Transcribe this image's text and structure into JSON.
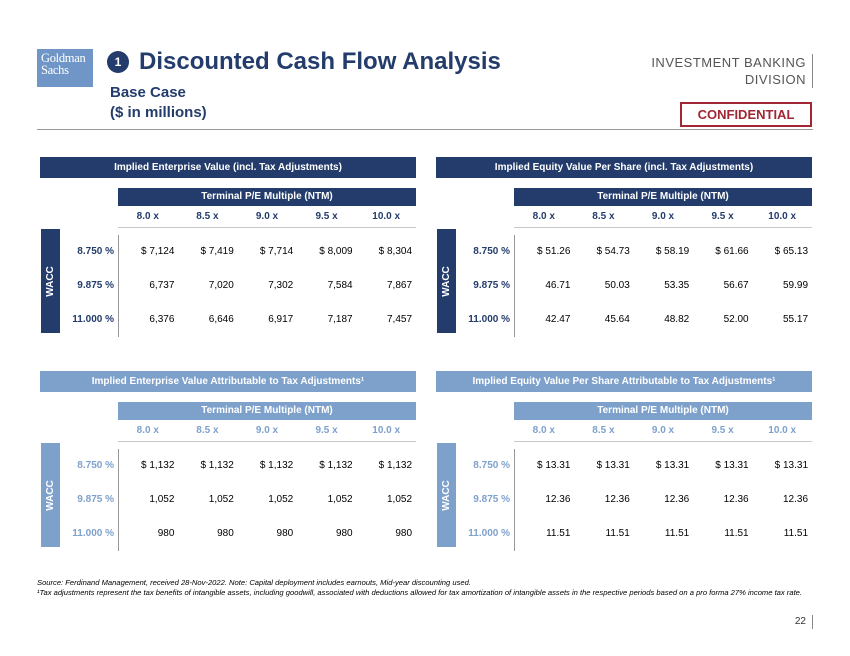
{
  "header": {
    "logo_line1": "Goldman",
    "logo_line2": "Sachs",
    "badge": "1",
    "title": "Discounted Cash Flow Analysis",
    "subtitle_line1": "Base Case",
    "subtitle_line2": "($ in millions)",
    "division_line1": "INVESTMENT BANKING",
    "division_line2": "DIVISION",
    "confidential": "CONFIDENTIAL"
  },
  "panels": [
    {
      "title": "Implied Enterprise Value (incl. Tax Adjustments)",
      "subheader": "Terminal P/E Multiple (NTM)",
      "columns": [
        "8.0 x",
        "8.5 x",
        "9.0 x",
        "9.5 x",
        "10.0 x"
      ],
      "axis_label": "WACC",
      "rows": [
        {
          "label": "8.750 %",
          "values": [
            "$ 7,124",
            "$ 7,419",
            "$ 7,714",
            "$ 8,009",
            "$ 8,304"
          ]
        },
        {
          "label": "9.875 %",
          "values": [
            "6,737",
            "7,020",
            "7,302",
            "7,584",
            "7,867"
          ]
        },
        {
          "label": "11.000 %",
          "values": [
            "6,376",
            "6,646",
            "6,917",
            "7,187",
            "7,457"
          ]
        }
      ]
    },
    {
      "title": "Implied Equity Value Per Share (incl. Tax Adjustments)",
      "subheader": "Terminal P/E Multiple (NTM)",
      "columns": [
        "8.0 x",
        "8.5 x",
        "9.0 x",
        "9.5 x",
        "10.0 x"
      ],
      "axis_label": "WACC",
      "rows": [
        {
          "label": "8.750 %",
          "values": [
            "$ 51.26",
            "$ 54.73",
            "$ 58.19",
            "$ 61.66",
            "$ 65.13"
          ]
        },
        {
          "label": "9.875 %",
          "values": [
            "46.71",
            "50.03",
            "53.35",
            "56.67",
            "59.99"
          ]
        },
        {
          "label": "11.000 %",
          "values": [
            "42.47",
            "45.64",
            "48.82",
            "52.00",
            "55.17"
          ]
        }
      ]
    },
    {
      "title": "Implied Enterprise Value Attributable to Tax Adjustments¹",
      "subheader": "Terminal P/E Multiple (NTM)",
      "columns": [
        "8.0 x",
        "8.5 x",
        "9.0 x",
        "9.5 x",
        "10.0 x"
      ],
      "axis_label": "WACC",
      "rows": [
        {
          "label": "8.750 %",
          "values": [
            "$ 1,132",
            "$ 1,132",
            "$ 1,132",
            "$ 1,132",
            "$ 1,132"
          ]
        },
        {
          "label": "9.875 %",
          "values": [
            "1,052",
            "1,052",
            "1,052",
            "1,052",
            "1,052"
          ]
        },
        {
          "label": "11.000 %",
          "values": [
            "980",
            "980",
            "980",
            "980",
            "980"
          ]
        }
      ]
    },
    {
      "title": "Implied Equity Value Per Share Attributable to Tax Adjustments¹",
      "subheader": "Terminal P/E Multiple (NTM)",
      "columns": [
        "8.0 x",
        "8.5 x",
        "9.0 x",
        "9.5 x",
        "10.0 x"
      ],
      "axis_label": "WACC",
      "rows": [
        {
          "label": "8.750 %",
          "values": [
            "$ 13.31",
            "$ 13.31",
            "$ 13.31",
            "$ 13.31",
            "$ 13.31"
          ]
        },
        {
          "label": "9.875 %",
          "values": [
            "12.36",
            "12.36",
            "12.36",
            "12.36",
            "12.36"
          ]
        },
        {
          "label": "11.000 %",
          "values": [
            "11.51",
            "11.51",
            "11.51",
            "11.51",
            "11.51"
          ]
        }
      ]
    }
  ],
  "footer": {
    "source": "Source: Ferdinand Management, received 28-Nov-2022. Note: Capital deployment includes earnouts, Mid-year discounting used.",
    "footnote": "¹Tax adjustments represent the tax benefits of intangible assets, including goodwill, associated with deductions allowed for tax amortization of intangible assets in the respective periods based on a pro forma 27% income tax rate.",
    "page_number": "22"
  }
}
